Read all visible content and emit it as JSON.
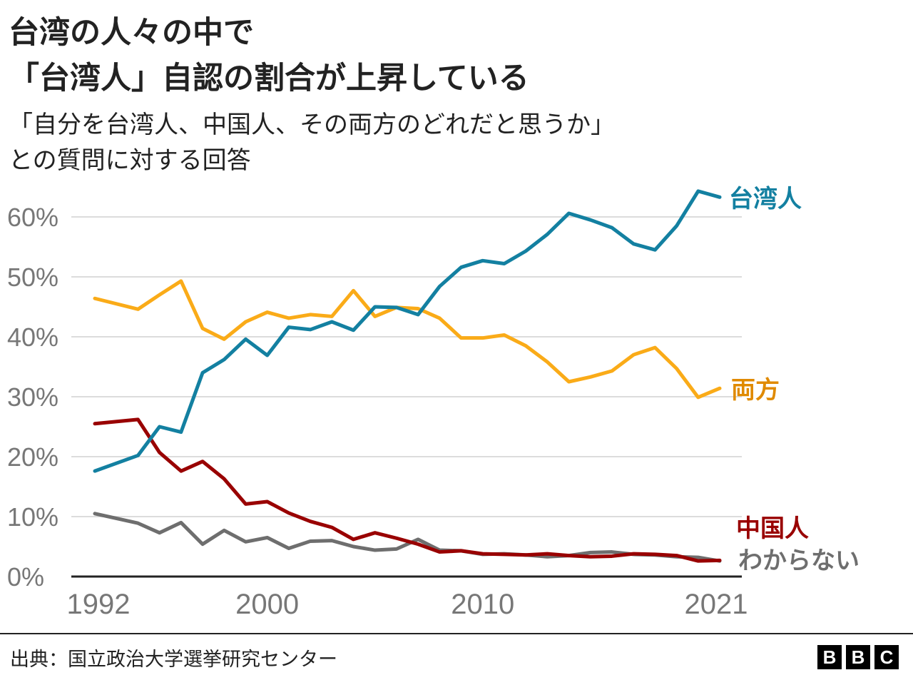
{
  "chart_data": {
    "type": "line",
    "title": [
      "台湾の人々の中で",
      "「台湾人」自認の割合が上昇している"
    ],
    "subtitle": [
      "「自分を台湾人、中国人、その両方のどれだと思うか」",
      "との質問に対する回答"
    ],
    "x": [
      1992,
      1994,
      1995,
      1996,
      1997,
      1998,
      1999,
      2000,
      2001,
      2002,
      2003,
      2004,
      2005,
      2006,
      2007,
      2008,
      2009,
      2010,
      2011,
      2012,
      2013,
      2014,
      2015,
      2016,
      2017,
      2018,
      2019,
      2020,
      2021
    ],
    "xticks": [
      1992,
      2000,
      2010,
      2021
    ],
    "xtick_labels": [
      "1992",
      "2000",
      "2010",
      "2021"
    ],
    "xlim": [
      1992,
      2021
    ],
    "ylim": [
      0,
      60
    ],
    "yticks": [
      0,
      10,
      20,
      30,
      40,
      50,
      60
    ],
    "ytick_labels": [
      "0%",
      "10%",
      "20%",
      "30%",
      "40%",
      "50%",
      "60%"
    ],
    "grid": true,
    "legend": "direct labels at right end of lines",
    "series": [
      {
        "name": "台湾人",
        "color": "#1380A1",
        "values": [
          17.6,
          20.2,
          25.0,
          24.1,
          34.0,
          36.2,
          39.6,
          36.9,
          41.6,
          41.2,
          42.5,
          41.1,
          45.0,
          44.9,
          43.7,
          48.4,
          51.6,
          52.7,
          52.2,
          54.3,
          57.1,
          60.6,
          59.5,
          58.2,
          55.5,
          54.5,
          58.5,
          64.3,
          63.3
        ]
      },
      {
        "name": "両方",
        "color": "#FAAB18",
        "label_color": "#E08A00",
        "values": [
          46.4,
          44.6,
          47.0,
          49.3,
          41.4,
          39.6,
          42.5,
          44.1,
          43.1,
          43.7,
          43.4,
          47.7,
          43.4,
          44.9,
          44.7,
          43.1,
          39.8,
          39.8,
          40.3,
          38.5,
          35.8,
          32.5,
          33.3,
          34.3,
          37.0,
          38.2,
          34.7,
          29.9,
          31.4
        ]
      },
      {
        "name": "中国人",
        "color": "#990000",
        "values": [
          25.5,
          26.2,
          20.7,
          17.6,
          19.2,
          16.3,
          12.1,
          12.5,
          10.6,
          9.2,
          8.2,
          6.2,
          7.3,
          6.4,
          5.4,
          4.1,
          4.3,
          3.8,
          3.7,
          3.6,
          3.8,
          3.5,
          3.3,
          3.4,
          3.8,
          3.7,
          3.5,
          2.6,
          2.7
        ]
      },
      {
        "name": "わからない",
        "color": "#6E6E6E",
        "values": [
          10.5,
          8.9,
          7.3,
          9.0,
          5.4,
          7.7,
          5.8,
          6.5,
          4.7,
          5.9,
          6.0,
          5.0,
          4.4,
          4.6,
          6.2,
          4.4,
          4.3,
          3.7,
          3.8,
          3.6,
          3.3,
          3.5,
          4.0,
          4.1,
          3.7,
          3.6,
          3.3,
          3.2,
          2.6
        ]
      }
    ],
    "source": "出典：国立政治大学選挙研究センター"
  },
  "logo": [
    "B",
    "B",
    "C"
  ]
}
